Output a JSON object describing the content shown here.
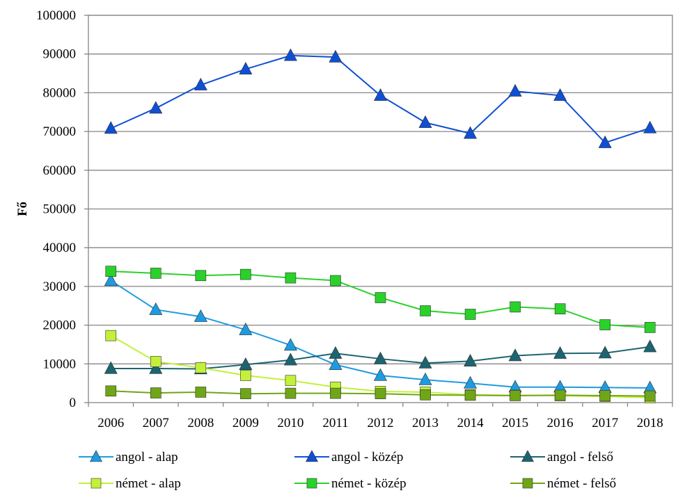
{
  "chart_data": {
    "type": "line",
    "title": "",
    "xlabel": "",
    "ylabel": "Fő",
    "ylim": [
      0,
      100000
    ],
    "y_ticks": [
      "0",
      "10000",
      "20000",
      "30000",
      "40000",
      "50000",
      "60000",
      "70000",
      "80000",
      "90000",
      "100000"
    ],
    "categories": [
      "2006",
      "2007",
      "2008",
      "2009",
      "2010",
      "2011",
      "2012",
      "2013",
      "2014",
      "2015",
      "2016",
      "2017",
      "2018"
    ],
    "grid": true,
    "legend_position": "bottom",
    "series": [
      {
        "name": "angol - alap",
        "marker": "triangle",
        "color": "#1E9BE0",
        "values": [
          31500,
          24000,
          22200,
          18800,
          14800,
          9800,
          7000,
          5900,
          5000,
          4000,
          4000,
          3900,
          3800
        ]
      },
      {
        "name": "angol - közép",
        "marker": "triangle",
        "color": "#0F4FD4",
        "values": [
          70800,
          76000,
          82000,
          86100,
          89600,
          89200,
          79300,
          72300,
          69500,
          80400,
          79300,
          67100,
          70900
        ]
      },
      {
        "name": "angol - felső",
        "marker": "triangle",
        "color": "#1C6470",
        "values": [
          8800,
          8800,
          8700,
          9800,
          11000,
          12700,
          11300,
          10200,
          10700,
          12100,
          12700,
          12800,
          14400
        ]
      },
      {
        "name": "német - alap",
        "marker": "square",
        "color": "#C3F03A",
        "values": [
          17300,
          10600,
          9000,
          7000,
          5700,
          4000,
          2900,
          2700,
          2000,
          1900,
          1800,
          1600,
          1300
        ]
      },
      {
        "name": "német - közép",
        "marker": "square",
        "color": "#2AD12A",
        "values": [
          33900,
          33400,
          32800,
          33100,
          32200,
          31500,
          27100,
          23700,
          22800,
          24700,
          24200,
          20100,
          19400
        ]
      },
      {
        "name": "német - felső",
        "marker": "square",
        "color": "#6FA617",
        "values": [
          3000,
          2500,
          2700,
          2300,
          2400,
          2400,
          2300,
          2000,
          1900,
          1800,
          1900,
          1800,
          1700
        ]
      }
    ]
  }
}
